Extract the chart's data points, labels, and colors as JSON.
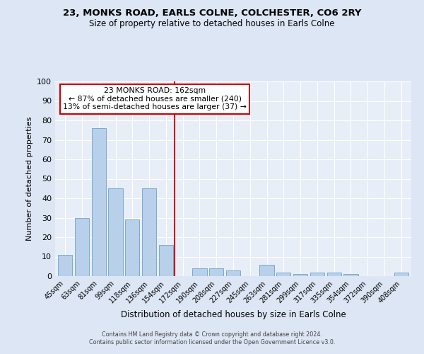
{
  "title": "23, MONKS ROAD, EARLS COLNE, COLCHESTER, CO6 2RY",
  "subtitle": "Size of property relative to detached houses in Earls Colne",
  "xlabel": "Distribution of detached houses by size in Earls Colne",
  "ylabel": "Number of detached properties",
  "bar_labels": [
    "45sqm",
    "63sqm",
    "81sqm",
    "99sqm",
    "118sqm",
    "136sqm",
    "154sqm",
    "172sqm",
    "190sqm",
    "208sqm",
    "227sqm",
    "245sqm",
    "263sqm",
    "281sqm",
    "299sqm",
    "317sqm",
    "335sqm",
    "354sqm",
    "372sqm",
    "390sqm",
    "408sqm"
  ],
  "bar_values": [
    11,
    30,
    76,
    45,
    29,
    45,
    16,
    0,
    4,
    4,
    3,
    0,
    6,
    2,
    1,
    2,
    2,
    1,
    0,
    0,
    2
  ],
  "bar_color": "#b8d0ea",
  "bar_edge_color": "#7aaad0",
  "vline_x": 6.5,
  "vline_color": "#cc0000",
  "annotation_title": "23 MONKS ROAD: 162sqm",
  "annotation_line1": "← 87% of detached houses are smaller (240)",
  "annotation_line2": "13% of semi-detached houses are larger (37) →",
  "annotation_box_color": "#ffffff",
  "annotation_border_color": "#cc0000",
  "ylim": [
    0,
    100
  ],
  "yticks": [
    0,
    10,
    20,
    30,
    40,
    50,
    60,
    70,
    80,
    90,
    100
  ],
  "bg_color": "#dce6f5",
  "plot_bg_color": "#e8eef8",
  "footer1": "Contains HM Land Registry data © Crown copyright and database right 2024.",
  "footer2": "Contains public sector information licensed under the Open Government Licence v3.0."
}
